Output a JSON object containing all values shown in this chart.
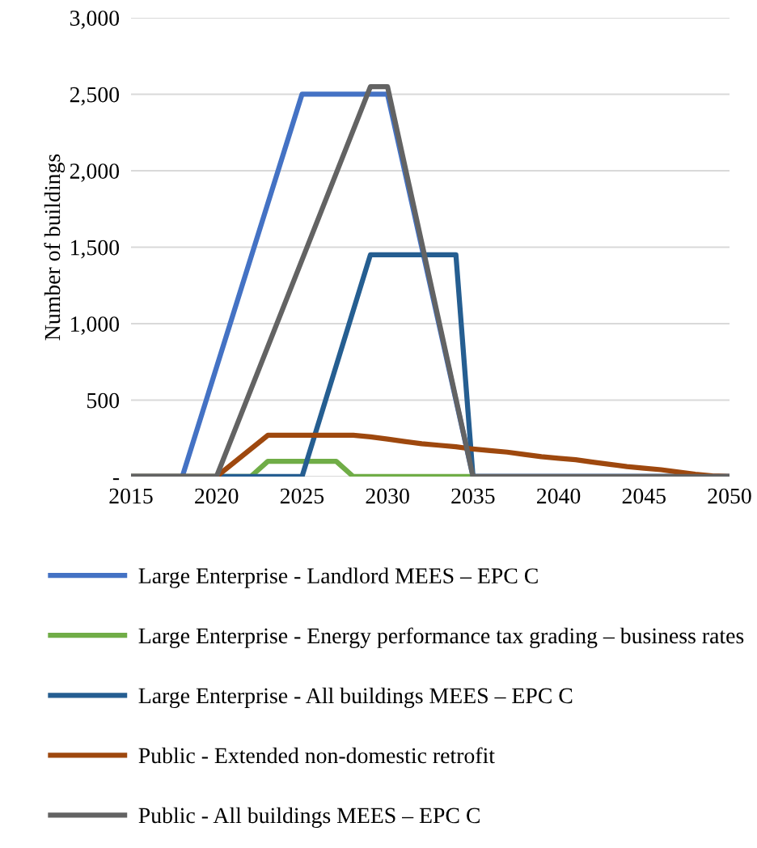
{
  "chart_data": {
    "type": "line",
    "ylabel": "Number of buildings",
    "xlim": [
      2015,
      2050
    ],
    "xticks": [
      2015,
      2020,
      2025,
      2030,
      2035,
      2040,
      2045,
      2050
    ],
    "ylim": [
      0,
      3000
    ],
    "yticks": [
      {
        "value": 0,
        "label": "-"
      },
      {
        "value": 500,
        "label": "500"
      },
      {
        "value": 1000,
        "label": "1,000"
      },
      {
        "value": 1500,
        "label": "1,500"
      },
      {
        "value": 2000,
        "label": "2,000"
      },
      {
        "value": 2500,
        "label": "2,500"
      },
      {
        "value": 3000,
        "label": "3,000"
      }
    ],
    "grid": "y",
    "legend": "bottom",
    "marker": "none",
    "line_style": "solid",
    "series": [
      {
        "name": "Large Enterprise - Landlord MEES – EPC C",
        "color": "#4472c4",
        "x": [
          2015,
          2018,
          2025,
          2030,
          2035,
          2050
        ],
        "values": [
          0,
          0,
          2500,
          2500,
          0,
          0
        ]
      },
      {
        "name": "Large Enterprise - Energy performance tax grading – business rates",
        "color": "#70ad47",
        "x": [
          2015,
          2022,
          2023,
          2027,
          2028,
          2035
        ],
        "values": [
          0,
          0,
          100,
          100,
          0,
          0
        ]
      },
      {
        "name": "Large Enterprise - All buildings MEES – EPC C",
        "color": "#255e91",
        "x": [
          2015,
          2025,
          2029,
          2034,
          2035,
          2050
        ],
        "values": [
          0,
          0,
          1450,
          1450,
          0,
          0
        ]
      },
      {
        "name": "Public - Extended non-domestic retrofit",
        "color": "#9e480e",
        "x": [
          2015,
          2020,
          2023,
          2028,
          2029,
          2030,
          2031,
          2032,
          2033,
          2034,
          2035,
          2036,
          2037,
          2038,
          2039,
          2040,
          2041,
          2042,
          2043,
          2044,
          2045,
          2046,
          2047,
          2048,
          2049,
          2050
        ],
        "values": [
          0,
          0,
          270,
          270,
          260,
          245,
          230,
          215,
          205,
          195,
          180,
          170,
          160,
          145,
          130,
          120,
          110,
          95,
          80,
          65,
          55,
          45,
          30,
          15,
          5,
          0
        ]
      },
      {
        "name": "Public - All buildings MEES – EPC C",
        "color": "#636363",
        "x": [
          2015,
          2020,
          2029,
          2030,
          2035,
          2050
        ],
        "values": [
          0,
          0,
          2550,
          2550,
          0,
          0
        ]
      }
    ]
  }
}
